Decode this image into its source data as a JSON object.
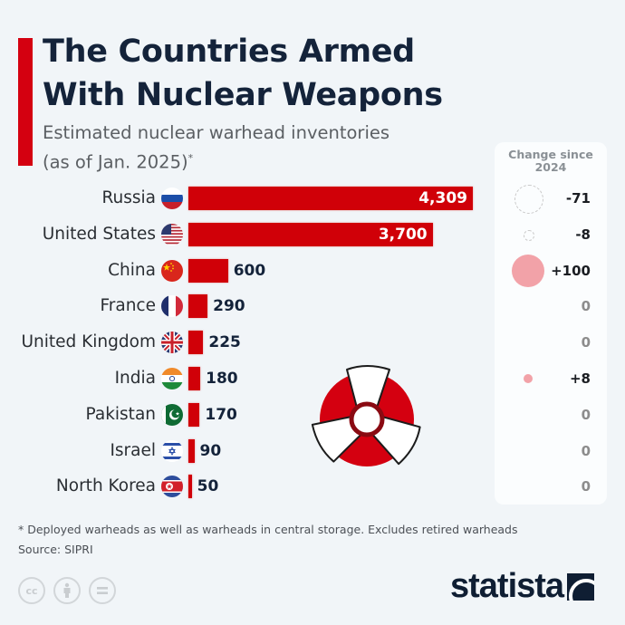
{
  "header": {
    "title_line1": "The Countries Armed",
    "title_line2": "With Nuclear Weapons",
    "subtitle_line1": "Estimated nuclear warhead inventories",
    "subtitle_line2": "(as of Jan. 2025)",
    "subtitle_mark": "*"
  },
  "change_panel": {
    "title_line1": "Change since",
    "title_line2": "2024"
  },
  "rows": [
    {
      "country": "Russia",
      "flag": "russia-flag",
      "value": 4309,
      "label": "4,309",
      "change": "-71"
    },
    {
      "country": "United States",
      "flag": "usa-flag",
      "value": 3700,
      "label": "3,700",
      "change": "-8"
    },
    {
      "country": "China",
      "flag": "china-flag",
      "value": 600,
      "label": "600",
      "change": "+100"
    },
    {
      "country": "France",
      "flag": "france-flag",
      "value": 290,
      "label": "290",
      "change": "0"
    },
    {
      "country": "United Kingdom",
      "flag": "uk-flag",
      "value": 225,
      "label": "225",
      "change": "0"
    },
    {
      "country": "India",
      "flag": "india-flag",
      "value": 180,
      "label": "180",
      "change": "+8"
    },
    {
      "country": "Pakistan",
      "flag": "pakistan-flag",
      "value": 170,
      "label": "170",
      "change": "0"
    },
    {
      "country": "Israel",
      "flag": "israel-flag",
      "value": 90,
      "label": "90",
      "change": "0"
    },
    {
      "country": "North Korea",
      "flag": "north-korea-flag",
      "value": 50,
      "label": "50",
      "change": "0"
    }
  ],
  "footer": {
    "footnote": "* Deployed warheads as well as warheads in central storage. Excludes retired warheads",
    "source": "Source: SIPRI",
    "license_icons": [
      "cc-icon",
      "attribution-icon",
      "no-derivatives-icon"
    ],
    "cc_text": "cc",
    "brand": "statista"
  },
  "colors": {
    "accent": "#d40010",
    "bar": "#d00008",
    "title": "#14233a",
    "background": "#f1f5f8",
    "positive_bubble": "#f2a2a8",
    "negative_bubble_outline": "#c9c9c9"
  },
  "chart_data": {
    "type": "bar",
    "orientation": "horizontal",
    "title": "The Countries Armed With Nuclear Weapons",
    "subtitle": "Estimated nuclear warhead inventories (as of Jan. 2025)*",
    "categories": [
      "Russia",
      "United States",
      "China",
      "France",
      "United Kingdom",
      "India",
      "Pakistan",
      "Israel",
      "North Korea"
    ],
    "series": [
      {
        "name": "Warheads (Jan. 2025)",
        "values": [
          4309,
          3700,
          600,
          290,
          225,
          180,
          170,
          90,
          50
        ]
      },
      {
        "name": "Change since 2024",
        "values": [
          -71,
          -8,
          100,
          0,
          0,
          8,
          0,
          0,
          0
        ]
      }
    ],
    "xlabel": "",
    "ylabel": "",
    "grid": false,
    "legend": "Change since 2024 shown as bubble column on right",
    "annotations": [
      "* Deployed warheads as well as warheads in central storage. Excludes retired warheads",
      "Source: SIPRI"
    ]
  }
}
